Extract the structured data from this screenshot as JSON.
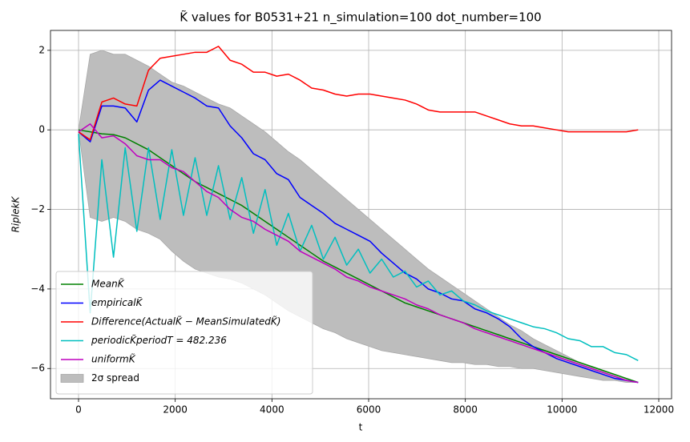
{
  "chart_data": {
    "type": "line",
    "title": "K̃ values for B0531+21 n_simulation=100 dot_number=100",
    "xlabel": "t",
    "ylabel": "RiplekK",
    "x": [
      0,
      241,
      482,
      723,
      965,
      1206,
      1447,
      1688,
      1929,
      2170,
      2411,
      2652,
      2894,
      3135,
      3376,
      3617,
      3858,
      4099,
      4340,
      4581,
      4822,
      5064,
      5305,
      5546,
      5787,
      6028,
      6269,
      6510,
      6751,
      6992,
      7234,
      7475,
      7716,
      7957,
      8198,
      8439,
      8680,
      8921,
      9162,
      9403,
      9644,
      9886,
      10127,
      10368,
      10609,
      10850,
      11091,
      11332,
      11574
    ],
    "series": [
      {
        "name": "MeanK̃",
        "color": "#008000",
        "values": [
          0,
          -0.05,
          -0.1,
          -0.12,
          -0.2,
          -0.35,
          -0.5,
          -0.7,
          -0.9,
          -1.1,
          -1.3,
          -1.45,
          -1.6,
          -1.75,
          -1.9,
          -2.1,
          -2.3,
          -2.5,
          -2.7,
          -2.9,
          -3.1,
          -3.3,
          -3.45,
          -3.6,
          -3.75,
          -3.9,
          -4.05,
          -4.2,
          -4.35,
          -4.45,
          -4.55,
          -4.65,
          -4.75,
          -4.85,
          -4.95,
          -5.05,
          -5.15,
          -5.25,
          -5.35,
          -5.45,
          -5.55,
          -5.65,
          -5.75,
          -5.85,
          -5.95,
          -6.05,
          -6.15,
          -6.25,
          -6.35
        ]
      },
      {
        "name": "empiricalK̃",
        "color": "#0000ff",
        "values": [
          -0.05,
          -0.3,
          0.6,
          0.6,
          0.55,
          0.2,
          1.0,
          1.25,
          1.1,
          0.95,
          0.8,
          0.6,
          0.55,
          0.1,
          -0.2,
          -0.6,
          -0.75,
          -1.1,
          -1.25,
          -1.7,
          -1.9,
          -2.1,
          -2.35,
          -2.5,
          -2.65,
          -2.8,
          -3.1,
          -3.35,
          -3.6,
          -3.75,
          -4.0,
          -4.1,
          -4.25,
          -4.3,
          -4.5,
          -4.6,
          -4.75,
          -4.95,
          -5.25,
          -5.45,
          -5.6,
          -5.75,
          -5.85,
          -5.95,
          -6.05,
          -6.15,
          -6.25,
          -6.3,
          -6.35
        ]
      },
      {
        "name": "Difference(ActualK̃ − MeanSimulatedK̃)",
        "color": "#ff0000",
        "values": [
          -0.05,
          -0.25,
          0.7,
          0.8,
          0.65,
          0.6,
          1.5,
          1.8,
          1.85,
          1.9,
          1.95,
          1.95,
          2.1,
          1.75,
          1.65,
          1.45,
          1.45,
          1.35,
          1.4,
          1.25,
          1.05,
          1.0,
          0.9,
          0.85,
          0.9,
          0.9,
          0.85,
          0.8,
          0.75,
          0.65,
          0.5,
          0.45,
          0.45,
          0.45,
          0.45,
          0.35,
          0.25,
          0.15,
          0.1,
          0.1,
          0.05,
          0,
          -0.05,
          -0.05,
          -0.05,
          -0.05,
          -0.05,
          -0.05,
          0
        ]
      },
      {
        "name": "periodicK̃periodT = 482.236",
        "color": "#00bfbf",
        "values": [
          -0.1,
          -4.6,
          -0.75,
          -3.2,
          -0.45,
          -2.55,
          -0.45,
          -2.25,
          -0.5,
          -2.15,
          -0.7,
          -2.15,
          -0.9,
          -2.25,
          -1.2,
          -2.6,
          -1.5,
          -2.9,
          -2.1,
          -3.05,
          -2.4,
          -3.25,
          -2.7,
          -3.4,
          -3.0,
          -3.6,
          -3.25,
          -3.7,
          -3.55,
          -3.95,
          -3.8,
          -4.15,
          -4.05,
          -4.3,
          -4.4,
          -4.55,
          -4.65,
          -4.75,
          -4.85,
          -4.95,
          -5.0,
          -5.1,
          -5.25,
          -5.3,
          -5.45,
          -5.45,
          -5.6,
          -5.65,
          -5.8
        ]
      },
      {
        "name": "uniformK̃",
        "color": "#bf00bf",
        "values": [
          -0.05,
          0.15,
          -0.2,
          -0.15,
          -0.35,
          -0.65,
          -0.75,
          -0.75,
          -0.95,
          -1.05,
          -1.3,
          -1.55,
          -1.7,
          -2.0,
          -2.2,
          -2.3,
          -2.5,
          -2.65,
          -2.8,
          -3.05,
          -3.2,
          -3.35,
          -3.5,
          -3.7,
          -3.8,
          -3.95,
          -4.05,
          -4.15,
          -4.25,
          -4.4,
          -4.5,
          -4.65,
          -4.75,
          -4.85,
          -5.0,
          -5.1,
          -5.2,
          -5.3,
          -5.4,
          -5.5,
          -5.6,
          -5.7,
          -5.8,
          -5.9,
          -6.0,
          -6.1,
          -6.2,
          -6.3,
          -6.35
        ]
      }
    ],
    "band": {
      "name": "2σ spread",
      "color": "#bdbdbd",
      "upper": [
        0,
        1.9,
        2.0,
        1.9,
        1.9,
        1.75,
        1.6,
        1.4,
        1.2,
        1.1,
        0.95,
        0.8,
        0.65,
        0.55,
        0.35,
        0.15,
        -0.05,
        -0.3,
        -0.55,
        -0.75,
        -1.0,
        -1.25,
        -1.5,
        -1.75,
        -2.0,
        -2.25,
        -2.5,
        -2.75,
        -3.0,
        -3.25,
        -3.5,
        -3.7,
        -3.9,
        -4.1,
        -4.3,
        -4.5,
        -4.7,
        -4.9,
        -5.05,
        -5.25,
        -5.4,
        -5.55,
        -5.7,
        -5.85,
        -5.95,
        -6.05,
        -6.15,
        -6.25,
        -6.35
      ],
      "lower": [
        0,
        -2.2,
        -2.3,
        -2.2,
        -2.3,
        -2.5,
        -2.6,
        -2.75,
        -3.05,
        -3.3,
        -3.5,
        -3.6,
        -3.7,
        -3.75,
        -3.85,
        -4.0,
        -4.15,
        -4.35,
        -4.55,
        -4.7,
        -4.85,
        -5.0,
        -5.1,
        -5.25,
        -5.35,
        -5.45,
        -5.55,
        -5.6,
        -5.65,
        -5.7,
        -5.75,
        -5.8,
        -5.85,
        -5.85,
        -5.9,
        -5.9,
        -5.95,
        -5.95,
        -6.0,
        -6.0,
        -6.05,
        -6.1,
        -6.15,
        -6.2,
        -6.25,
        -6.3,
        -6.3,
        -6.35,
        -6.35
      ]
    },
    "xlim": [
      -580,
      12265
    ],
    "ylim": [
      -6.76,
      2.5
    ],
    "xticks": [
      0,
      2000,
      4000,
      6000,
      8000,
      10000,
      12000
    ],
    "yticks": [
      {
        "value": -6,
        "label": "−6"
      },
      {
        "value": -4,
        "label": "−4"
      },
      {
        "value": -2,
        "label": "−2"
      },
      0,
      2
    ],
    "grid": true,
    "legend": "lower left"
  }
}
